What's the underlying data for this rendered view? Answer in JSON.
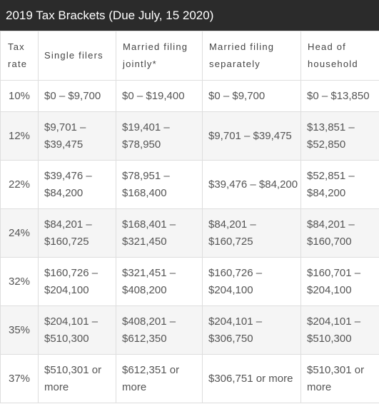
{
  "title": "2019 Tax Brackets (Due July, 15 2020)",
  "columns": {
    "rate": [
      "Tax",
      "rate"
    ],
    "single": "Single filers",
    "married_joint": [
      "Married filing",
      "jointly*"
    ],
    "married_separate": [
      "Married filing",
      "separately"
    ],
    "head": [
      "Head of",
      "household"
    ]
  },
  "rows": [
    {
      "rate": "10%",
      "single": [
        "$0 – $9,700"
      ],
      "married_joint": [
        "$0 – $19,400"
      ],
      "married_separate": [
        "$0 – $9,700"
      ],
      "head": [
        "$0 – $13,850"
      ]
    },
    {
      "rate": "12%",
      "single": [
        "$9,701 –",
        "$39,475"
      ],
      "married_joint": [
        "$19,401 –",
        "$78,950"
      ],
      "married_separate": [
        "$9,701 – $39,475"
      ],
      "head": [
        "$13,851 –",
        "$52,850"
      ]
    },
    {
      "rate": "22%",
      "single": [
        "$39,476 –",
        "$84,200"
      ],
      "married_joint": [
        "$78,951 –",
        "$168,400"
      ],
      "married_separate": [
        "$39,476 – $84,200"
      ],
      "head": [
        "$52,851 –",
        "$84,200"
      ]
    },
    {
      "rate": "24%",
      "single": [
        "$84,201 –",
        "$160,725"
      ],
      "married_joint": [
        "$168,401 –",
        "$321,450"
      ],
      "married_separate": [
        "$84,201 –",
        "$160,725"
      ],
      "head": [
        "$84,201 –",
        "$160,700"
      ]
    },
    {
      "rate": "32%",
      "single": [
        "$160,726 –",
        "$204,100"
      ],
      "married_joint": [
        "$321,451 –",
        "$408,200"
      ],
      "married_separate": [
        "$160,726 –",
        "$204,100"
      ],
      "head": [
        "$160,701 –",
        "$204,100"
      ]
    },
    {
      "rate": "35%",
      "single": [
        "$204,101 –",
        "$510,300"
      ],
      "married_joint": [
        "$408,201 –",
        "$612,350"
      ],
      "married_separate": [
        "$204,101 –",
        "$306,750"
      ],
      "head": [
        "$204,101 –",
        "$510,300"
      ]
    },
    {
      "rate": "37%",
      "single": [
        "$510,301 or",
        "more"
      ],
      "married_joint": [
        "$612,351 or",
        "more"
      ],
      "married_separate": [
        "$306,751 or more"
      ],
      "head": [
        "$510,301 or",
        "more"
      ]
    }
  ]
}
